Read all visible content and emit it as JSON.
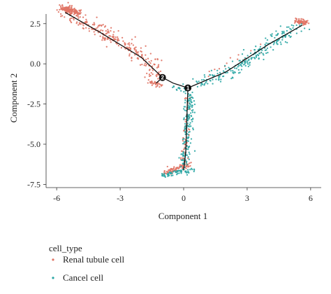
{
  "chart_data": {
    "type": "scatter",
    "xlabel": "Component 1",
    "ylabel": "Component 2",
    "xlim": [
      -6.5,
      6.5
    ],
    "ylim": [
      -7.7,
      3.1
    ],
    "x_ticks": [
      -6,
      -3,
      0,
      3,
      6
    ],
    "x_tick_labels": [
      "-6",
      "-3",
      "0",
      "3",
      "6"
    ],
    "y_ticks": [
      2.5,
      0.0,
      -2.5,
      -5.0,
      -7.5
    ],
    "y_tick_labels": [
      "2.5",
      "0.0",
      "-2.5",
      "-5.0",
      "-7.5"
    ],
    "grid": false,
    "legend": {
      "title": "cell_type",
      "placement": "bottom-left",
      "entries": [
        {
          "label": "Renal tubule cell",
          "color": "#E07465"
        },
        {
          "label": "Cancel cell",
          "color": "#2AA6A4"
        }
      ]
    },
    "trajectory": {
      "color": "#111111",
      "branch_nodes": [
        {
          "label": "2",
          "x": -1.0,
          "y": -0.85
        },
        {
          "label": "1",
          "x": 0.2,
          "y": -1.5
        }
      ],
      "segments": [
        [
          [
            -5.6,
            3.2
          ],
          [
            -4.0,
            2.0
          ],
          [
            -2.0,
            0.4
          ],
          [
            -1.0,
            -0.85
          ]
        ],
        [
          [
            -1.0,
            -0.85
          ],
          [
            -0.5,
            -1.2
          ],
          [
            0.2,
            -1.5
          ]
        ],
        [
          [
            0.2,
            -1.5
          ],
          [
            2.0,
            -0.5
          ],
          [
            4.0,
            1.2
          ],
          [
            5.6,
            2.4
          ]
        ],
        [
          [
            0.2,
            -1.5
          ],
          [
            0.15,
            -3.5
          ],
          [
            0.1,
            -5.5
          ],
          [
            0.0,
            -6.6
          ]
        ],
        [
          [
            -1.0,
            -0.85
          ],
          [
            -1.3,
            -1.2
          ]
        ]
      ]
    },
    "series": [
      {
        "name": "Renal tubule cell",
        "color": "#E07465",
        "clusters": [
          {
            "path": [
              [
                -5.6,
                3.3
              ],
              [
                -4.0,
                2.1
              ],
              [
                -2.0,
                0.5
              ],
              [
                -1.1,
                -0.8
              ]
            ],
            "spread": 0.35,
            "count": 260
          },
          {
            "path": [
              [
                -5.7,
                3.5
              ],
              [
                -5.0,
                3.2
              ]
            ],
            "spread": 0.18,
            "count": 140
          },
          {
            "path": [
              [
                -1.6,
                -1.1
              ],
              [
                -1.1,
                -1.4
              ]
            ],
            "spread": 0.12,
            "count": 30
          },
          {
            "path": [
              [
                0.2,
                -2.0
              ],
              [
                0.1,
                -5.0
              ],
              [
                0.0,
                -6.3
              ]
            ],
            "spread": 0.12,
            "count": 60
          },
          {
            "path": [
              [
                -0.8,
                -6.8
              ],
              [
                0.1,
                -6.3
              ]
            ],
            "spread": 0.18,
            "count": 90
          },
          {
            "path": [
              [
                5.4,
                2.7
              ],
              [
                5.8,
                2.5
              ]
            ],
            "spread": 0.14,
            "count": 70
          },
          {
            "path": [
              [
                1.0,
                -0.9
              ],
              [
                4.5,
                1.6
              ]
            ],
            "spread": 0.3,
            "count": 18
          }
        ]
      },
      {
        "name": "Cancel cell",
        "color": "#2AA6A4",
        "clusters": [
          {
            "path": [
              [
                0.6,
                -1.3
              ],
              [
                2.5,
                -0.3
              ],
              [
                4.5,
                1.6
              ],
              [
                5.5,
                2.4
              ]
            ],
            "spread": 0.33,
            "count": 220
          },
          {
            "path": [
              [
                0.3,
                -1.8
              ],
              [
                0.2,
                -4.0
              ],
              [
                0.05,
                -6.2
              ]
            ],
            "spread": 0.16,
            "count": 160
          },
          {
            "path": [
              [
                -1.0,
                -6.9
              ],
              [
                0.5,
                -6.6
              ]
            ],
            "spread": 0.2,
            "count": 70
          },
          {
            "path": [
              [
                -0.4,
                -1.5
              ],
              [
                0.2,
                -1.6
              ]
            ],
            "spread": 0.15,
            "count": 20
          }
        ]
      }
    ]
  }
}
